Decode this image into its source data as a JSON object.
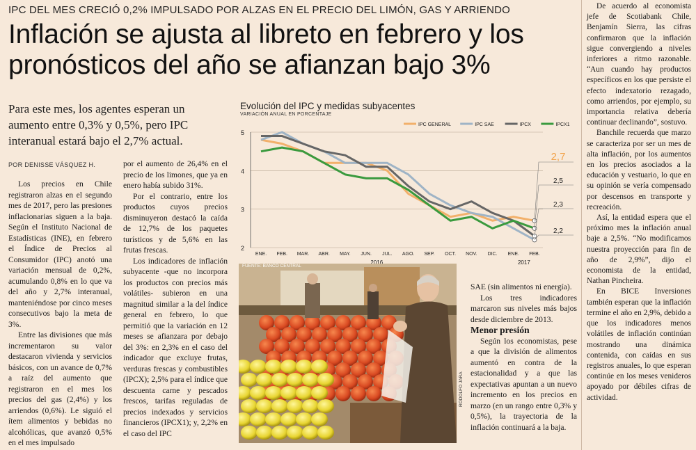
{
  "kicker": "IPC DEL MES CRECIÓ 0,2% IMPULSADO POR ALZAS EN EL PRECIO DEL LIMÓN, GAS Y ARRIENDO",
  "headline": "Inflación se ajusta al libreto en febrero y los pronósticos del año se afianzan bajo 3%",
  "lead": "Para este mes, los agentes esperan un aumento entre 0,3% y 0,5%, pero IPC interanual estará bajo el 2,7% actual.",
  "byline": "POR DENISSE VÁSQUEZ H.",
  "col1": [
    "Los precios en Chile registraron alzas en el segundo mes de 2017, pero las presiones inflacionarias siguen a la baja. Según el Instituto Nacional de Estadísticas (INE), en febrero el Índice de Precios al Consumidor (IPC) anotó una variación mensual de 0,2%, acumulando 0,8% en lo que va del año y 2,7% interanual, manteniéndose por cinco meses consecutivos bajo la meta de 3%.",
    "Entre las divisiones que más incrementaron su valor destacaron vivienda y servicios básicos, con un avance de 0,7% a raíz del aumento que registraron en el mes los precios del gas (2,4%) y los arriendos (0,6%). Le siguió el ítem alimentos y bebidas no alcohólicas, que avanzó 0,5% en el mes impulsado"
  ],
  "col2": [
    "por el aumento de 26,4% en el precio de los limones, que ya en enero había subido 31%.",
    "Por el contrario, entre los productos cuyos precios disminuyeron destacó la caída de 12,7% de los paquetes turísticos y de 5,6% en las frutas frescas.",
    "Los indicadores de inflación subyacente -que no incorpora los productos con precios más volátiles- subieron en una magnitud similar a la del índice general en febrero, lo que permitió que la variación en 12 meses se afianzara por debajo del 3%: en 2,3% en el caso del indicador que excluye frutas, verduras frescas y combustibles (IPCX); 2,5% para el índice que descuenta carne y pescados frescos, tarifas reguladas de precios indexados y servicios financieros (IPCX1); y, 2,2% en el caso del IPC"
  ],
  "col3": {
    "p1": "SAE (sin alimentos ni energía).",
    "p2": "Los tres indicadores marcaron sus niveles más bajos desde diciembre de 2013.",
    "subhead": "Menor presión",
    "p3": "Según los economistas, pese a que la división de alimentos aumentó en contra de la estacionalidad y a que las expectativas apuntan a un nuevo incremento en los precios en marzo (en un rango entre 0,3% y 0,5%), la trayectoria de la inflación continuará a la baja."
  },
  "col4": [
    "De acuerdo al economista jefe de Scotiabank Chile, Benjamín Sierra, las cifras confirmaron que la inflación sigue convergiendo a niveles inferiores a ritmo razonable. “Aun cuando hay productos específicos en los que persiste el efecto indexatorio rezagado, como arriendos, por ejemplo, su importancia relativa debería continuar declinando”, sostuvo.",
    "Banchile recuerda que marzo se caracteriza por ser un mes de alta inflación, por los aumentos en los precios asociados a la educación y vestuario, lo que en su opinión se vería compensado por descensos en transporte y recreación.",
    "Así, la entidad espera que el próximo mes la inflación anual baje a 2,5%. “No modificamos nuestra proyección para fin de año de 2,9%”, dijo el economista de la entidad, Nathan Pincheira.",
    "En BICE Inversiones también esperan que la inflación termine el año en 2,9%, debido a que los indicadores menos volátiles de inflación continúan mostrando una dinámica contenida, con caídas en sus registros anuales, lo que esperan continúe en los meses venideros apoyado por débiles cifras de actividad."
  ],
  "photo": {
    "source": "FUENTE: BANCO CENTRAL",
    "credit": "RODOLFO JARA"
  },
  "chart_data": {
    "type": "line",
    "title": "Evolución del IPC y medidas subyacentes",
    "subtitle": "VARIACIÓN ANUAL EN PORCENTAJE",
    "categories": [
      "ENE.",
      "FEB.",
      "MAR.",
      "ABR.",
      "MAY.",
      "JUN.",
      "JUL.",
      "AGO.",
      "SEP.",
      "OCT.",
      "NOV.",
      "DIC.",
      "ENE.",
      "FEB."
    ],
    "year_labels": [
      "2016",
      "2017"
    ],
    "ylim": [
      2,
      5
    ],
    "yticks": [
      "2",
      "3",
      "4",
      "5"
    ],
    "series": [
      {
        "name": "IPC GENERAL",
        "color": "#f2b06a",
        "values": [
          4.8,
          4.7,
          4.5,
          4.2,
          4.2,
          4.2,
          4.0,
          3.4,
          3.1,
          2.8,
          2.9,
          2.7,
          2.8,
          2.7
        ]
      },
      {
        "name": "IPC SAE",
        "color": "#9fb4c6",
        "values": [
          4.8,
          5.0,
          4.7,
          4.5,
          4.2,
          4.2,
          4.2,
          3.9,
          3.4,
          3.1,
          2.9,
          2.8,
          2.5,
          2.2
        ]
      },
      {
        "name": "IPCX",
        "color": "#666666",
        "values": [
          4.9,
          4.9,
          4.7,
          4.5,
          4.4,
          4.1,
          4.1,
          3.6,
          3.2,
          3.0,
          3.2,
          2.9,
          2.7,
          2.3
        ]
      },
      {
        "name": "IPCX1",
        "color": "#3a9a3e",
        "values": [
          4.5,
          4.6,
          4.5,
          4.2,
          3.9,
          3.8,
          3.8,
          3.5,
          3.1,
          2.7,
          2.8,
          2.5,
          2.7,
          2.5
        ]
      }
    ],
    "end_labels": [
      {
        "text": "2,7",
        "series": "IPC GENERAL",
        "big": true
      },
      {
        "text": "2,5",
        "series": "IPCX1",
        "big": false
      },
      {
        "text": "2,3",
        "series": "IPCX",
        "big": false
      },
      {
        "text": "2,2",
        "series": "IPC SAE",
        "big": false
      }
    ]
  }
}
